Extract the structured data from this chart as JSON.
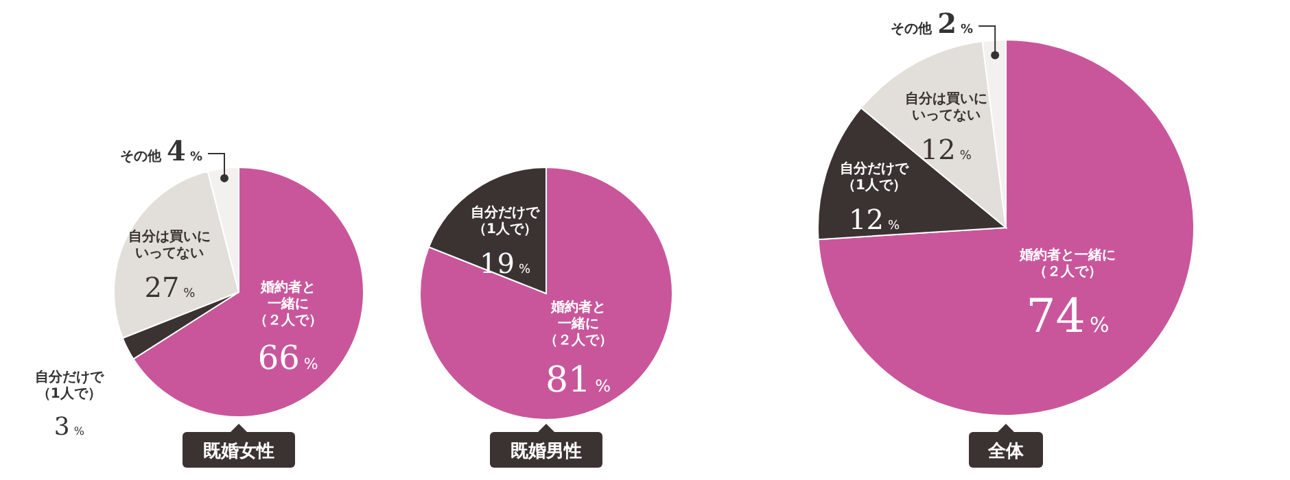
{
  "chart_data": [
    {
      "type": "pie",
      "title": "既婚女性",
      "categories": [
        "婚約者と一緒に（２人で）",
        "自分だけで（1人で）",
        "自分は買いにいってない",
        "その他"
      ],
      "values": [
        66,
        3,
        27,
        4
      ],
      "value_labels": [
        "66%",
        "3%",
        "27%",
        "4%"
      ],
      "colors": [
        "#c9569b",
        "#3b3331",
        "#e2dfda",
        "#f3f1ef"
      ]
    },
    {
      "type": "pie",
      "title": "既婚男性",
      "categories": [
        "婚約者と一緒に（２人で）",
        "自分だけで（1人で）"
      ],
      "values": [
        81,
        19
      ],
      "value_labels": [
        "81%",
        "19%"
      ],
      "colors": [
        "#c9569b",
        "#3b3331"
      ]
    },
    {
      "type": "pie",
      "title": "全体",
      "categories": [
        "婚約者と一緒に（２人で）",
        "自分だけで（1人で）",
        "自分は買いにいってない",
        "その他"
      ],
      "values": [
        74,
        12,
        12,
        2
      ],
      "value_labels": [
        "74%",
        "12%",
        "12%",
        "2%"
      ],
      "colors": [
        "#c9569b",
        "#3b3331",
        "#e2dfda",
        "#f3f1ef"
      ]
    }
  ]
}
